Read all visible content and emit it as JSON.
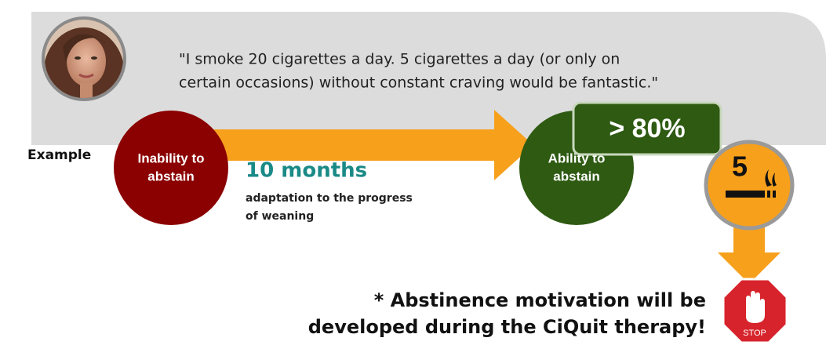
{
  "quote": {
    "lines": [
      "\"I smoke 20 cigarettes a day. 5 cigarettes a day (or only on",
      "certain occasions) without constant craving would be fantastic.\""
    ]
  },
  "label": "Example",
  "start": {
    "lines": [
      "Inability to",
      "abstain"
    ]
  },
  "duration": {
    "title": "10 months",
    "lines": [
      "adaptation to the progress",
      "of weaning"
    ]
  },
  "end": {
    "lines": [
      "Ability to",
      "abstain"
    ]
  },
  "rate": "> 80%",
  "cigarettes": "5",
  "note": {
    "lines": [
      "* Abstinence motivation will be",
      "developed during the CiQuit therapy!"
    ]
  },
  "stop": "STOP"
}
